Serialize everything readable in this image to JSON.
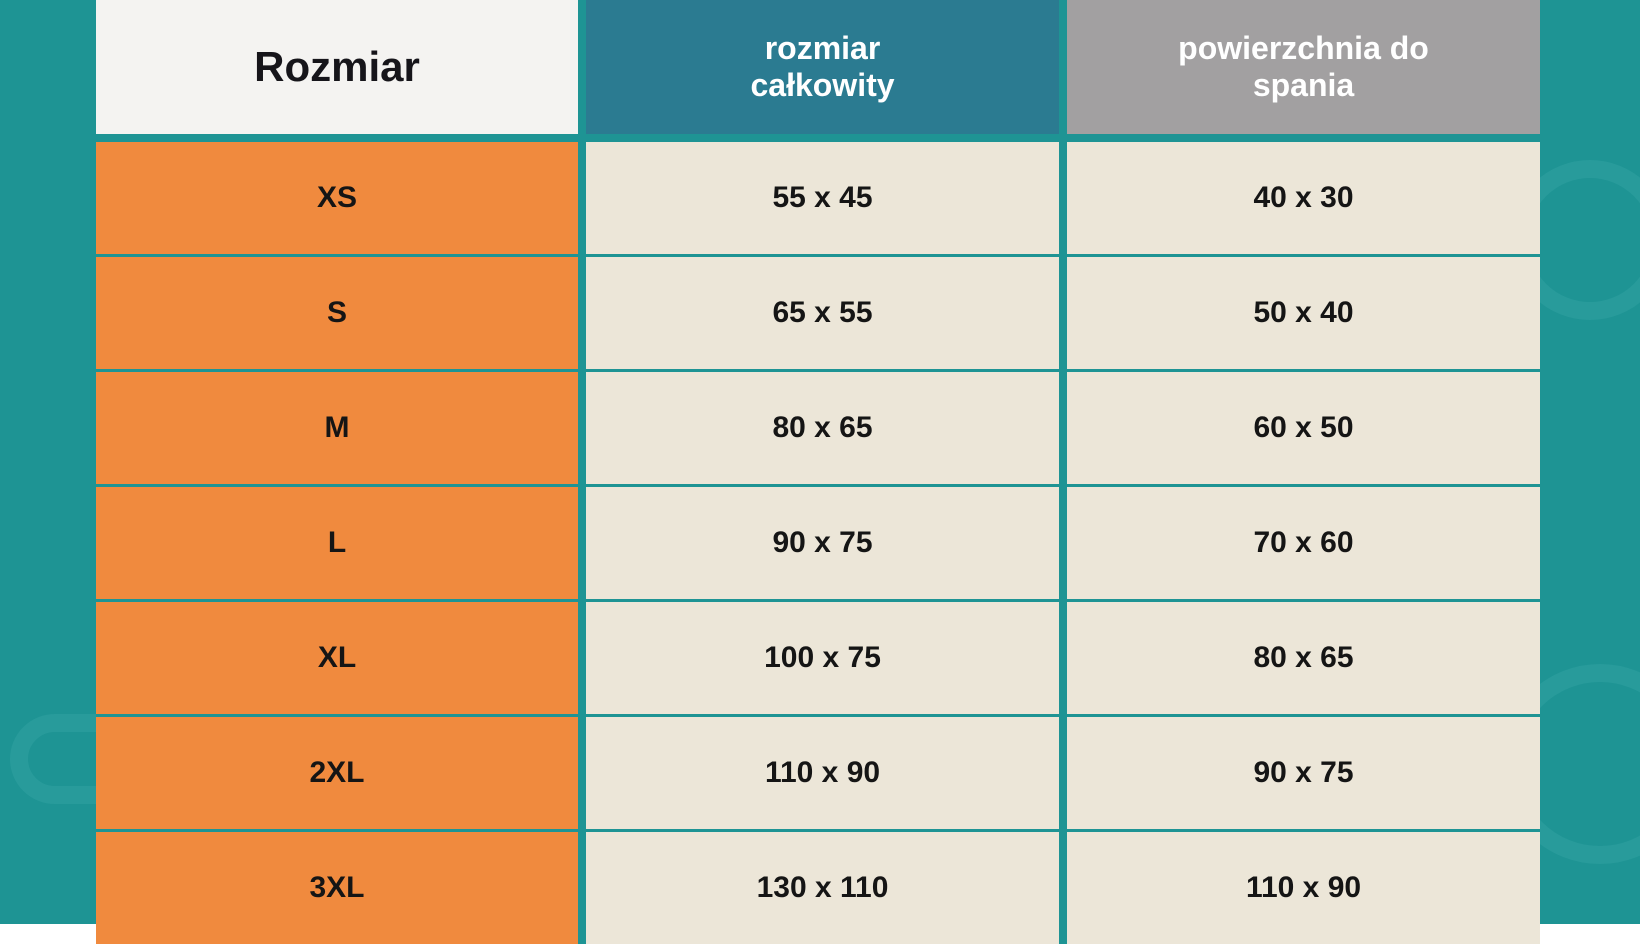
{
  "colors": {
    "page_bg": "#1e9494",
    "deco": "#4fb7b7",
    "header_col0_bg": "#f4f3f1",
    "header_col0_fg": "#16151a",
    "header_col1_bg": "#2b7b91",
    "header_col1_fg": "#ffffff",
    "header_col2_bg": "#a2a0a1",
    "header_col2_fg": "#ffffff",
    "body_col0_bg": "#f08a3e",
    "body_other_bg": "#ece6d8",
    "body_fg": "#151515",
    "row_border": "#1e9494",
    "col_border": "#1e9494"
  },
  "layout": {
    "header_fontsize_main": 42,
    "header_fontsize_sub": 32,
    "body_fontsize": 30,
    "border_thin": 3,
    "border_thick": 8
  },
  "table": {
    "headers": [
      "Rozmiar",
      "rozmiar całkowity",
      "powierzchnia do spania"
    ],
    "rows": [
      [
        "XS",
        "55 x 45",
        "40 x 30"
      ],
      [
        "S",
        "65 x 55",
        "50 x 40"
      ],
      [
        "M",
        "80 x 65",
        "60 x 50"
      ],
      [
        "L",
        "90 x 75",
        "70 x 60"
      ],
      [
        "XL",
        "100 x 75",
        "80 x 65"
      ],
      [
        "2XL",
        "110 x 90",
        "90 x 75"
      ],
      [
        "3XL",
        "130 x 110",
        "110 x 90"
      ]
    ]
  }
}
